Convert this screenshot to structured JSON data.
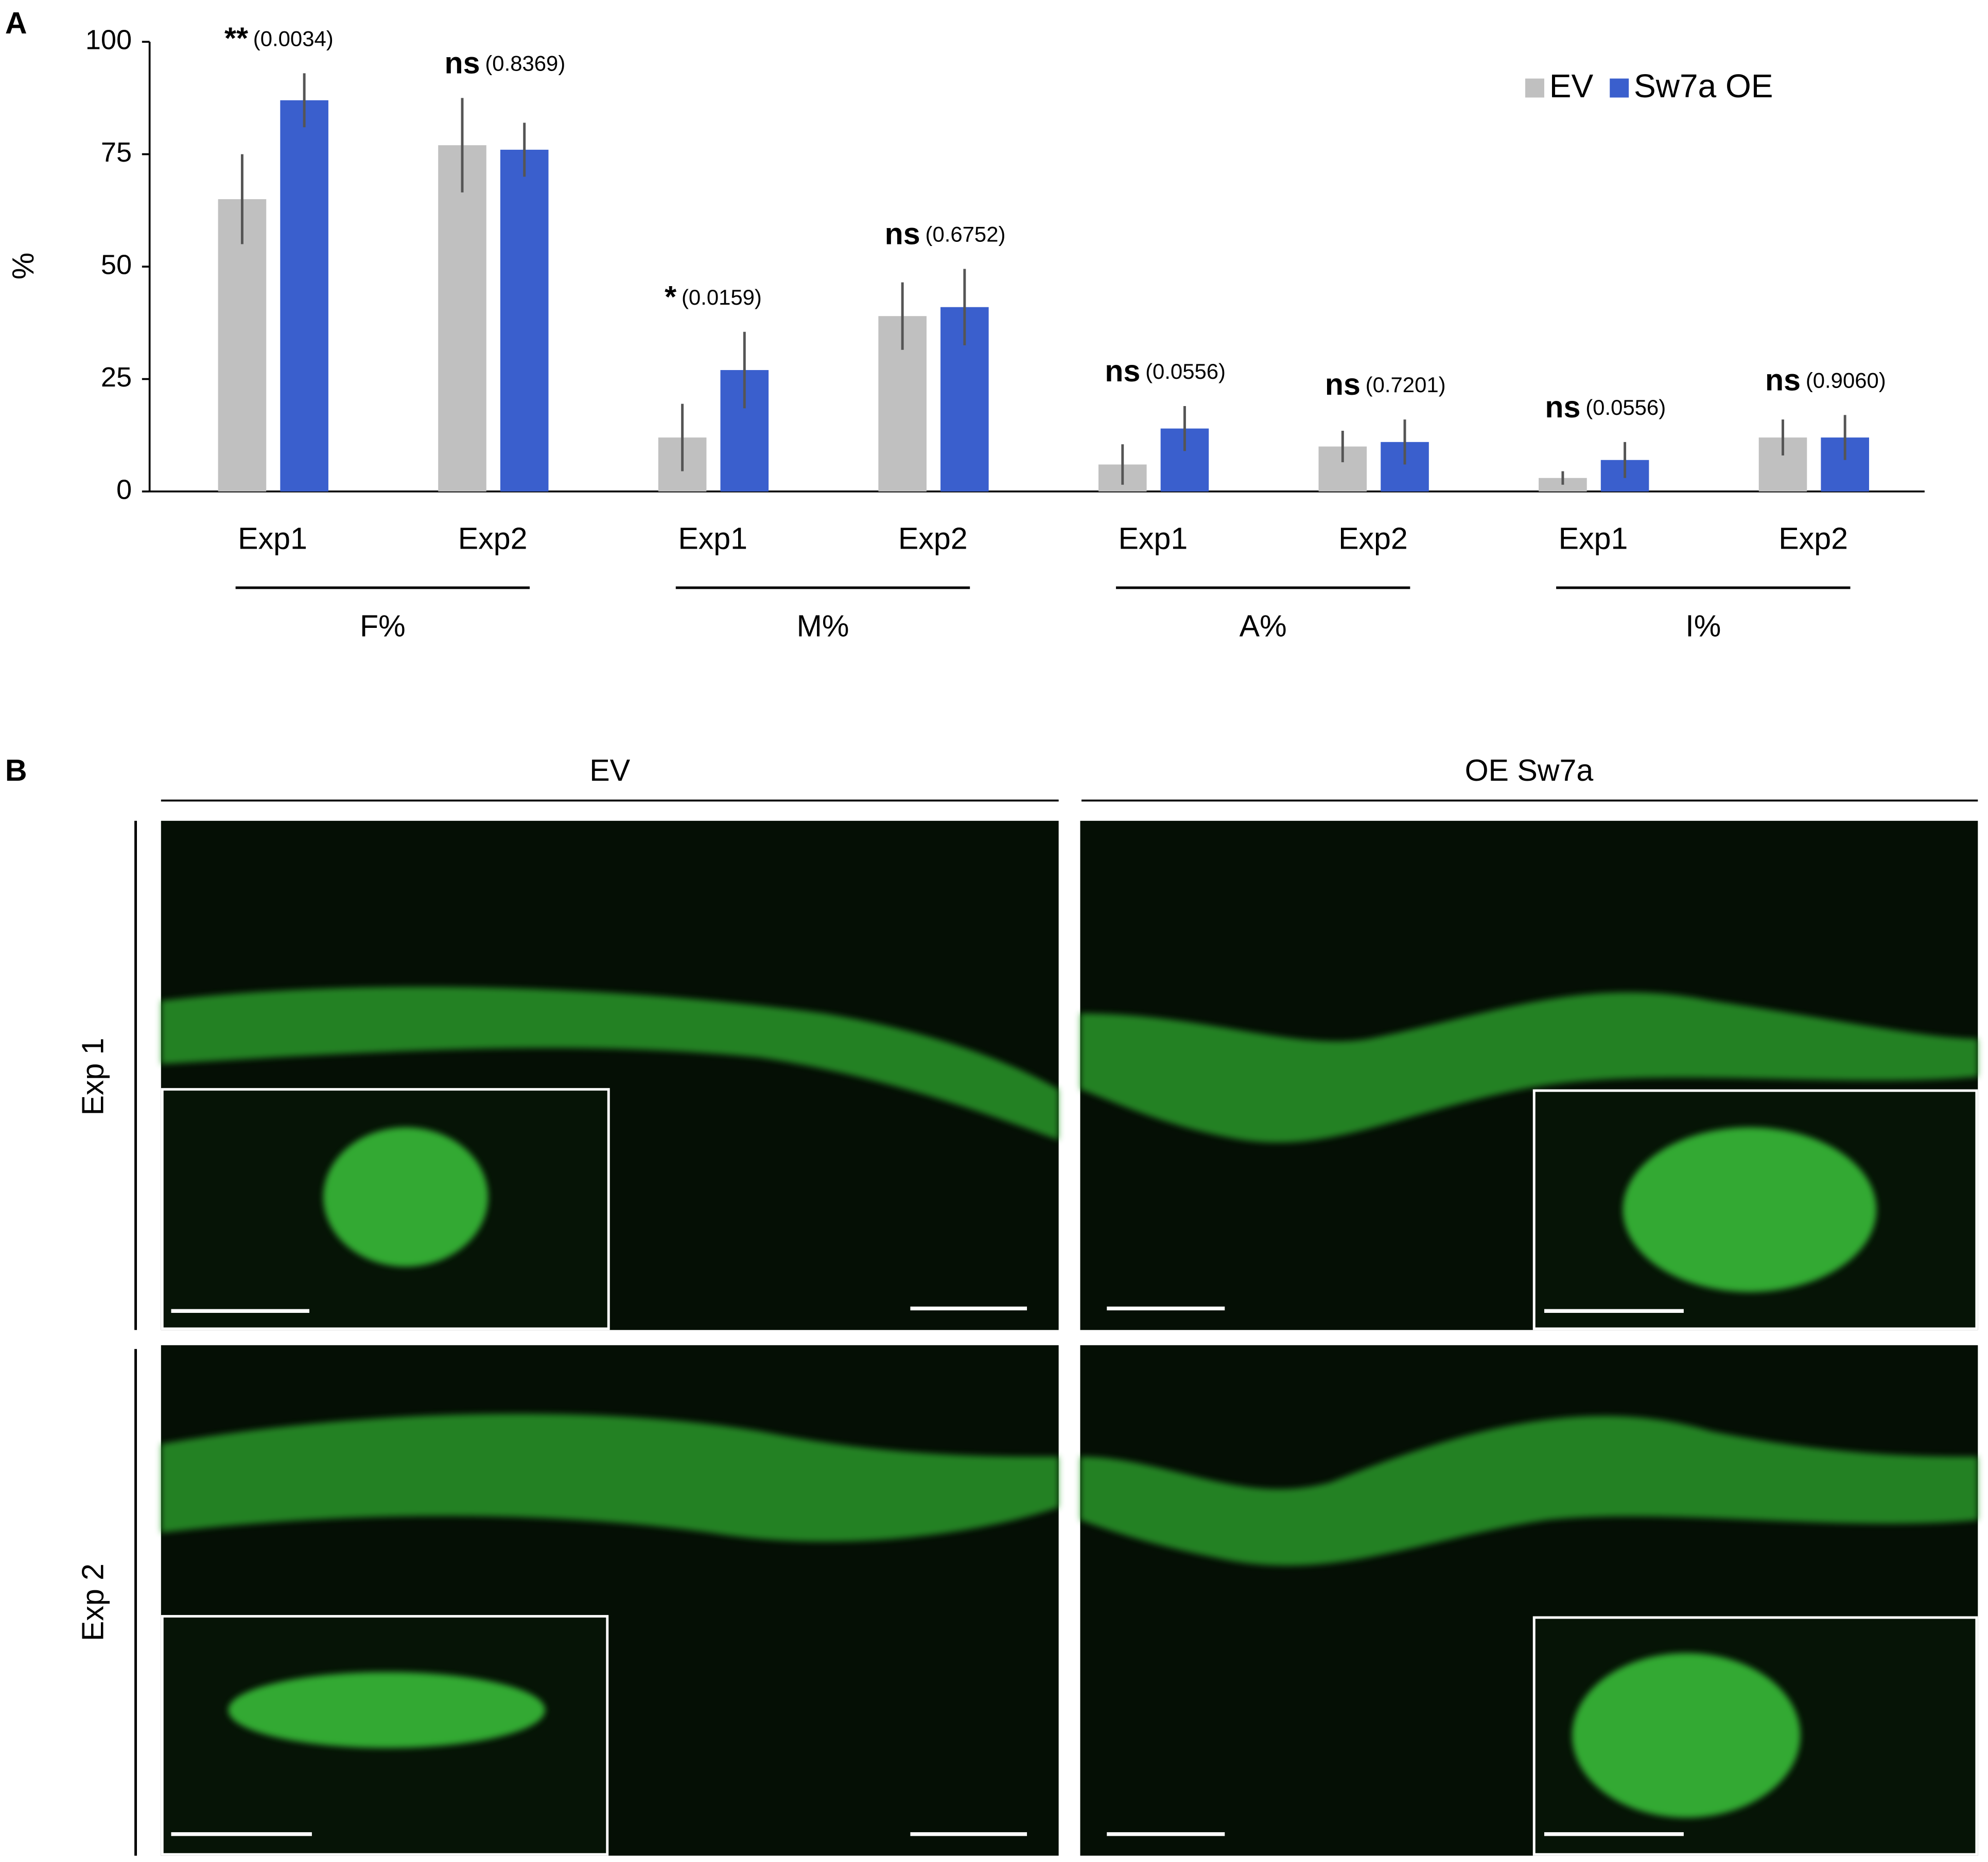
{
  "panel_labels": [
    "A",
    "B"
  ],
  "chart_data": {
    "type": "bar",
    "ylabel": "%",
    "categories": [
      "Exp1",
      "Exp2",
      "Exp1",
      "Exp2",
      "Exp1",
      "Exp2",
      "Exp1",
      "Exp2"
    ],
    "groups": [
      "F%",
      "M%",
      "A%",
      "I%"
    ],
    "series": [
      {
        "name": "EV",
        "color": "#c0c0c0",
        "values": [
          65,
          77,
          12,
          39,
          6,
          10,
          3,
          12
        ],
        "errors": [
          10,
          10.5,
          7.5,
          7.5,
          4.5,
          3.5,
          1.5,
          4
        ]
      },
      {
        "name": "Sw7a OE",
        "color": "#3a5fcd",
        "values": [
          87,
          76,
          27,
          41,
          14,
          11,
          7,
          12
        ],
        "errors": [
          6,
          6,
          8.5,
          8.5,
          5,
          5,
          4,
          5
        ]
      }
    ],
    "annotations": [
      {
        "mark": "**",
        "p": "(0.0034)"
      },
      {
        "mark": "ns",
        "p": "(0.8369)"
      },
      {
        "mark": "*",
        "p": "(0.0159)"
      },
      {
        "mark": "ns",
        "p": "(0.6752)"
      },
      {
        "mark": "ns",
        "p": "(0.0556)"
      },
      {
        "mark": "ns",
        "p": "(0.7201)"
      },
      {
        "mark": "ns",
        "p": "(0.0556)"
      },
      {
        "mark": "ns",
        "p": "(0.9060)"
      }
    ],
    "ylim": [
      0,
      100
    ],
    "yticks": [
      0,
      25,
      50,
      75,
      100
    ],
    "grid": false,
    "legend": "top-right"
  },
  "micrographs": {
    "columns": [
      "EV",
      "OE Sw7a"
    ],
    "rows": [
      "Exp 1",
      "Exp 2"
    ]
  }
}
